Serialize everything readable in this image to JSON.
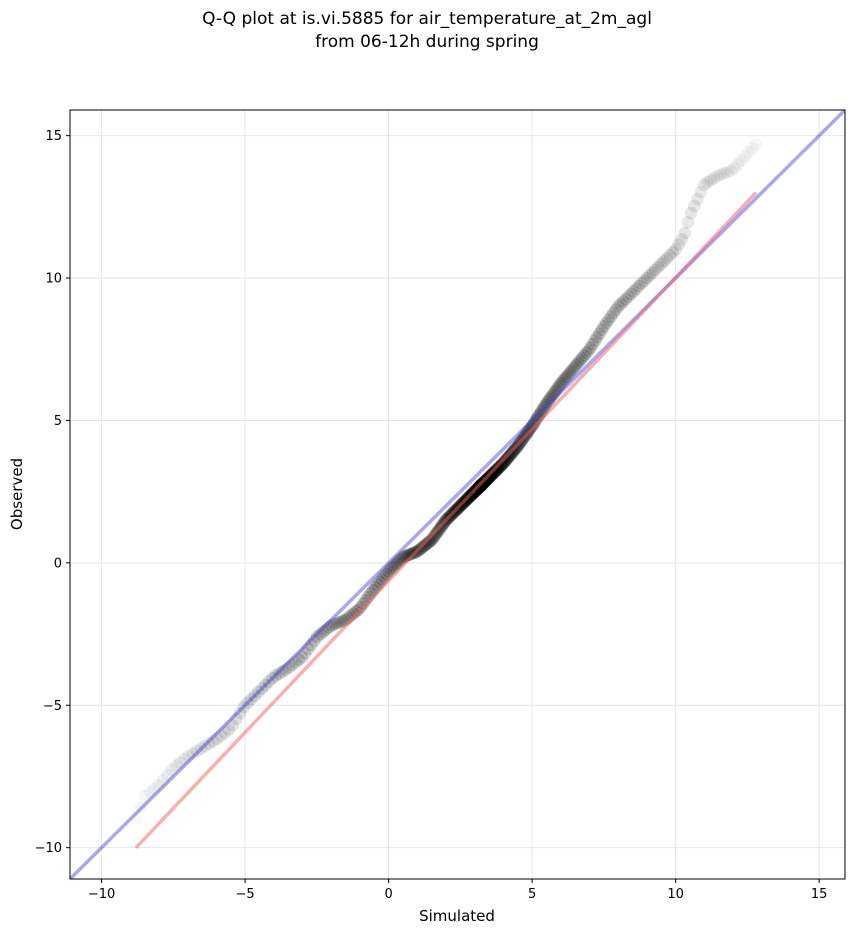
{
  "chart_data": {
    "type": "scatter",
    "title_lines": [
      "Q-Q plot at is.vi.5885 for air_temperature_at_2m_agl",
      "from 06-12h during spring"
    ],
    "xlabel": "Simulated",
    "ylabel": "Observed",
    "xlim": [
      -11.1,
      15.9
    ],
    "ylim": [
      -11.1,
      15.9
    ],
    "xticks": [
      -10,
      -5,
      0,
      5,
      10,
      15
    ],
    "yticks": [
      -10,
      -5,
      0,
      5,
      10,
      15
    ],
    "xtick_labels": [
      "−10",
      "−5",
      "0",
      "5",
      "10",
      "15"
    ],
    "ytick_labels": [
      "−10",
      "−5",
      "0",
      "5",
      "10",
      "15"
    ],
    "grid": true,
    "colors": {
      "points": "#000000",
      "identity_line": "#3f3fdf",
      "fit_line": "#f06060"
    },
    "identity_line": {
      "x": [
        -11.1,
        15.9
      ],
      "y": [
        -11.1,
        15.9
      ]
    },
    "fit_line": {
      "x": [
        -8.8,
        12.8
      ],
      "y": [
        -10.0,
        13.0
      ]
    },
    "quantile_knots": {
      "x": [
        -8.8,
        -8.5,
        -8.0,
        -7.5,
        -7.0,
        -6.5,
        -6.0,
        -5.5,
        -5.0,
        -4.5,
        -4.0,
        -3.5,
        -3.0,
        -2.5,
        -2.0,
        -1.5,
        -1.0,
        -0.5,
        0.0,
        0.5,
        1.0,
        1.5,
        2.0,
        2.5,
        3.0,
        3.5,
        4.0,
        4.5,
        5.0,
        5.5,
        6.0,
        6.5,
        7.0,
        7.5,
        8.0,
        8.5,
        9.0,
        9.5,
        10.0,
        10.3,
        10.5,
        11.0,
        11.5,
        12.0,
        12.8
      ],
      "y": [
        -9.0,
        -8.2,
        -7.8,
        -7.2,
        -6.8,
        -6.5,
        -6.2,
        -5.8,
        -5.0,
        -4.5,
        -4.0,
        -3.7,
        -3.3,
        -2.6,
        -2.2,
        -2.0,
        -1.6,
        -0.9,
        -0.3,
        0.2,
        0.4,
        0.8,
        1.5,
        2.0,
        2.5,
        3.0,
        3.5,
        4.1,
        4.8,
        5.6,
        6.3,
        6.9,
        7.5,
        8.3,
        9.0,
        9.5,
        10.0,
        10.5,
        11.0,
        11.5,
        12.2,
        13.3,
        13.6,
        13.8,
        14.7
      ]
    },
    "n_points": 360
  }
}
